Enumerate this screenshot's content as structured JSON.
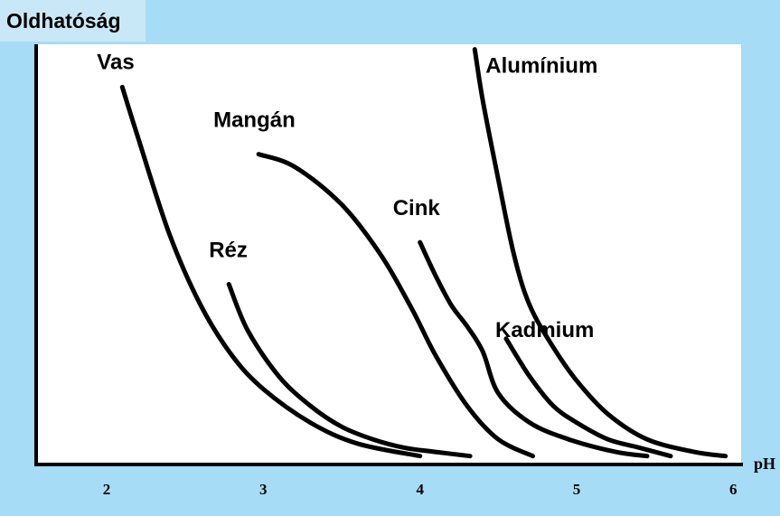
{
  "chart_data": {
    "type": "line",
    "title": "Oldhatóság",
    "ylabel": "Oldhatóság",
    "xlabel": "pH",
    "xlim": [
      1.55,
      6.05
    ],
    "ylim": [
      0,
      1
    ],
    "grid": false,
    "legend": "none",
    "x_ticks": [
      2,
      3,
      4,
      5,
      6
    ],
    "x_tick_labels": [
      "2",
      "3",
      "4",
      "5",
      "6"
    ],
    "series": [
      {
        "name": "Vas",
        "x": [
          2.1,
          2.2,
          2.4,
          2.6,
          2.8,
          3.0,
          3.3,
          3.6,
          4.0
        ],
        "y": [
          0.9,
          0.78,
          0.55,
          0.38,
          0.26,
          0.18,
          0.1,
          0.05,
          0.02
        ]
      },
      {
        "name": "Mangán",
        "x": [
          2.97,
          3.2,
          3.5,
          3.75,
          3.95,
          4.1,
          4.3,
          4.5,
          4.72
        ],
        "y": [
          0.74,
          0.71,
          0.62,
          0.5,
          0.37,
          0.26,
          0.14,
          0.06,
          0.02
        ]
      },
      {
        "name": "Réz",
        "x": [
          2.78,
          2.9,
          3.1,
          3.3,
          3.5,
          3.7,
          3.9,
          4.1,
          4.32
        ],
        "y": [
          0.43,
          0.32,
          0.21,
          0.14,
          0.09,
          0.06,
          0.04,
          0.03,
          0.02
        ]
      },
      {
        "name": "Cink",
        "x": [
          4.0,
          4.1,
          4.2,
          4.3,
          4.4,
          4.5,
          4.7,
          4.95,
          5.25,
          5.45
        ],
        "y": [
          0.53,
          0.45,
          0.38,
          0.33,
          0.27,
          0.17,
          0.1,
          0.06,
          0.03,
          0.02
        ]
      },
      {
        "name": "Alumínium",
        "x": [
          4.35,
          4.4,
          4.5,
          4.6,
          4.7,
          4.85,
          5.0,
          5.2,
          5.45,
          5.75,
          5.95
        ],
        "y": [
          0.99,
          0.87,
          0.68,
          0.5,
          0.38,
          0.28,
          0.2,
          0.12,
          0.06,
          0.03,
          0.02
        ]
      },
      {
        "name": "Kadmium",
        "x": [
          4.55,
          4.7,
          4.85,
          5.0,
          5.2,
          5.4,
          5.6
        ],
        "y": [
          0.3,
          0.21,
          0.14,
          0.1,
          0.06,
          0.04,
          0.02
        ]
      }
    ]
  }
}
